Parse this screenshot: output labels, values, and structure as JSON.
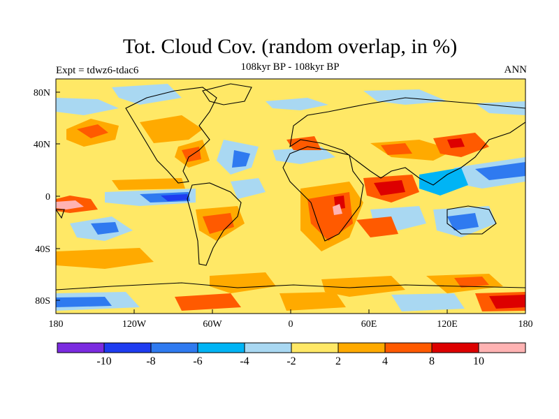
{
  "title": "Tot. Cloud Cov. (random overlap, in %)",
  "subtitle": "108kyr BP - 108kyr BP",
  "left_label": "Expt = tdwz6-tdac6",
  "right_label": "ANN",
  "axes": {
    "x_ticks": [
      "180",
      "120W",
      "60W",
      "0",
      "60E",
      "120E",
      "180"
    ],
    "y_ticks": [
      "80N",
      "40N",
      "0",
      "40S",
      "80S"
    ]
  },
  "colorbar": {
    "colors": [
      "#7b2be0",
      "#1e3cf0",
      "#2f7af0",
      "#00b4f5",
      "#a9d8f2",
      "#ffe866",
      "#ffaa00",
      "#ff5a00",
      "#dd0000",
      "#ffb3b3"
    ],
    "labels": [
      "-10",
      "-8",
      "-6",
      "-4",
      "-2",
      "2",
      "4",
      "8",
      "10"
    ]
  }
}
